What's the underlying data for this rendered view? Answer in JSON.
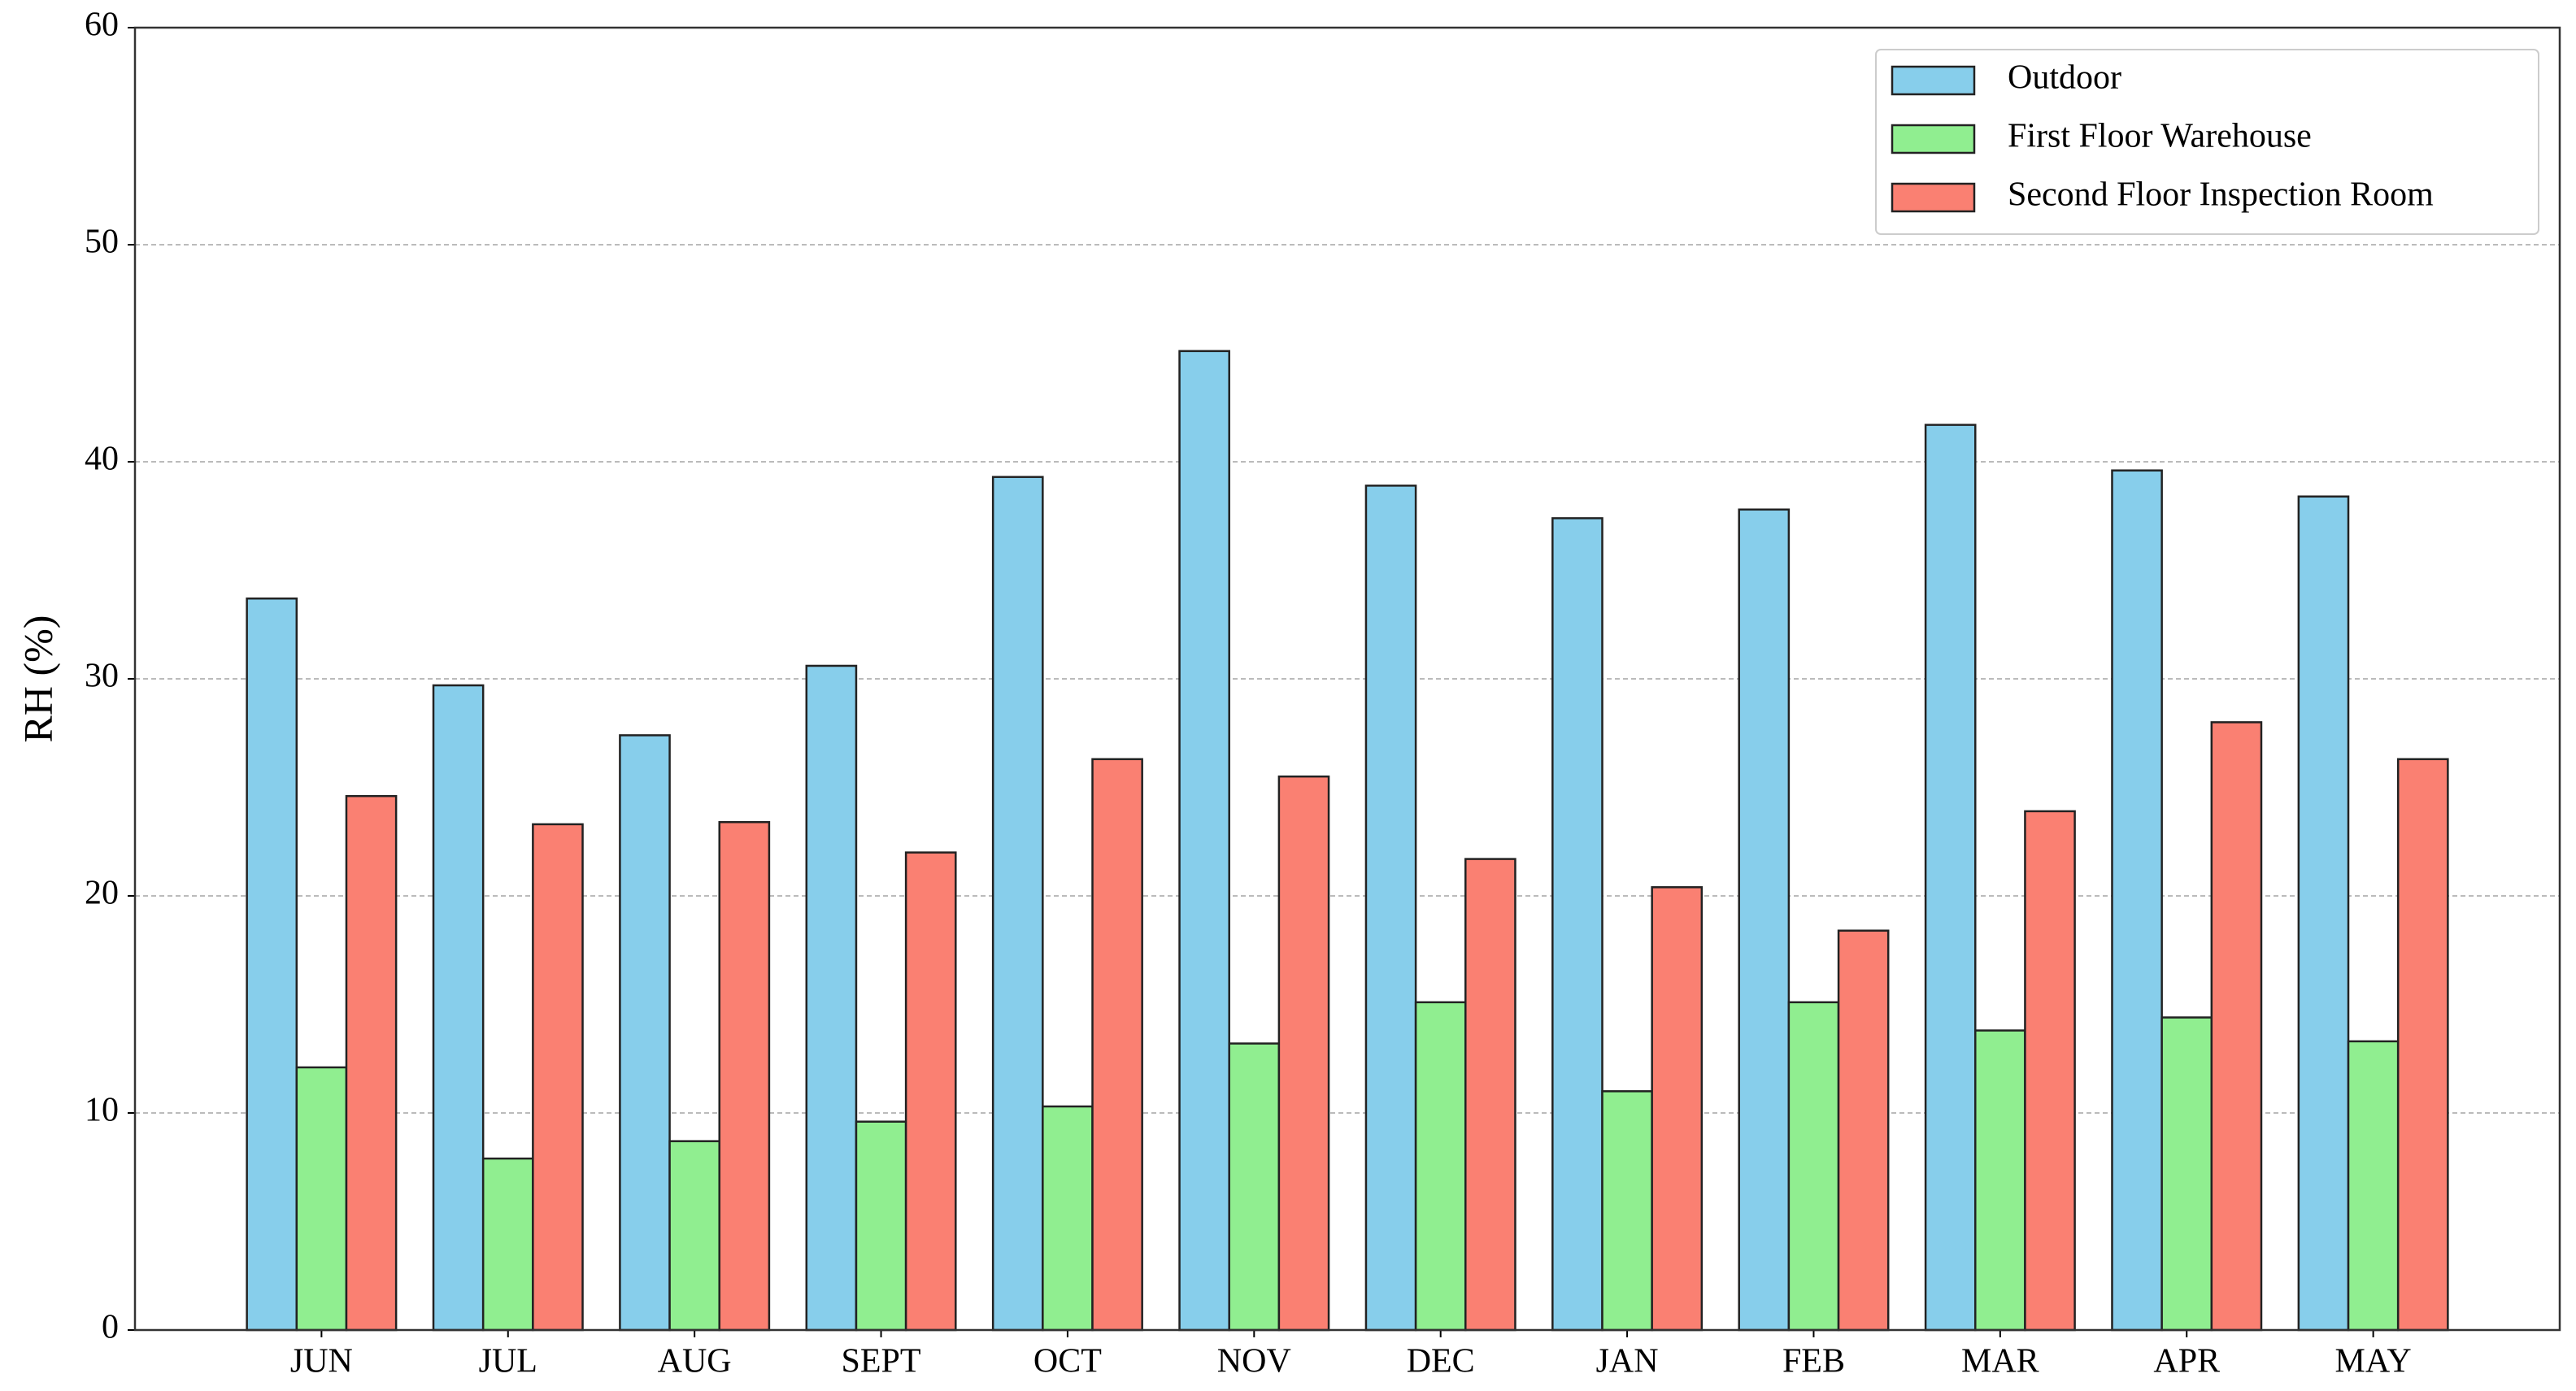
{
  "chart_data": {
    "type": "bar",
    "ylabel": "RH (%)",
    "categories": [
      "JUN",
      "JUL",
      "AUG",
      "SEPT",
      "OCT",
      "NOV",
      "DEC",
      "JAN",
      "FEB",
      "MAR",
      "APR",
      "MAY"
    ],
    "series": [
      {
        "name": "Outdoor",
        "color": "#87ceeb",
        "values": [
          33.7,
          29.7,
          27.4,
          30.6,
          39.3,
          45.1,
          38.9,
          37.4,
          37.8,
          41.7,
          39.6,
          38.4
        ]
      },
      {
        "name": "First Floor Warehouse",
        "color": "#90ee90",
        "values": [
          12.1,
          7.9,
          8.7,
          9.6,
          10.3,
          13.2,
          15.1,
          11.0,
          15.1,
          13.8,
          14.4,
          13.3
        ]
      },
      {
        "name": "Second Floor Inspection Room",
        "color": "#fa8072",
        "values": [
          24.6,
          23.3,
          23.4,
          22.0,
          26.3,
          25.5,
          21.7,
          20.4,
          18.4,
          23.9,
          28.0,
          26.3
        ]
      }
    ],
    "ylim": [
      0,
      60
    ],
    "yticks": [
      0,
      10,
      20,
      30,
      40,
      50,
      60
    ],
    "grid": true,
    "legend": "upper right"
  }
}
